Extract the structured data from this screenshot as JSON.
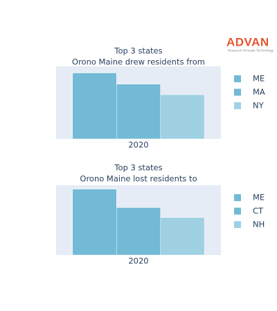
{
  "logo": {
    "name": "ADVAN",
    "tagline": "Research through Technology"
  },
  "chart_data": [
    {
      "type": "bar",
      "title": "Top 3 states",
      "subtitle": "Orono Maine drew residents from",
      "categories": [
        "2020"
      ],
      "ylim": [
        0,
        1.1
      ],
      "grid": false,
      "legend": "right",
      "series": [
        {
          "name": "ME",
          "color": "#72bad5",
          "values": [
            1.0
          ]
        },
        {
          "name": "MA",
          "color": "#72bad5",
          "values": [
            0.83
          ]
        },
        {
          "name": "NY",
          "color": "#9fd1e3",
          "values": [
            0.67
          ]
        }
      ]
    },
    {
      "type": "bar",
      "title": "Top 3 states",
      "subtitle": "Orono Maine lost residents to",
      "categories": [
        "2020"
      ],
      "ylim": [
        0,
        1.06
      ],
      "grid": false,
      "legend": "right",
      "series": [
        {
          "name": "ME",
          "color": "#72bad5",
          "values": [
            1.0
          ]
        },
        {
          "name": "CT",
          "color": "#72bad5",
          "values": [
            0.72
          ]
        },
        {
          "name": "NH",
          "color": "#9fd1e3",
          "values": [
            0.57
          ]
        }
      ]
    }
  ]
}
